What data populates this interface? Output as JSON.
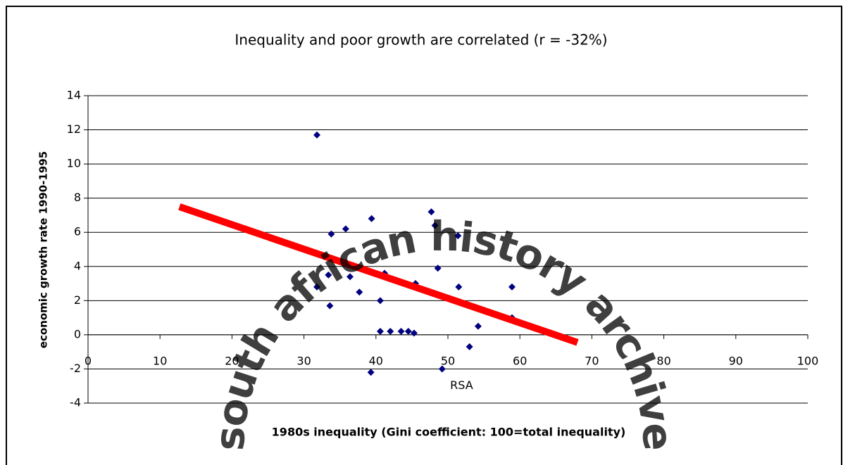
{
  "chart_data": {
    "type": "scatter",
    "title": "Inequality and poor growth are correlated (r = -32%)",
    "x_label": "1980s inequality (Gini coefficient: 100=total inequality)",
    "y_label": "economic growth rate 1990-1995",
    "series": [
      {
        "color": "#000080",
        "x": [
          31.8,
          33.8,
          35.8,
          39.4,
          47.7,
          48.2,
          51.4,
          33.4,
          48.6,
          41.2,
          36.4,
          31.8,
          37.7,
          40.6,
          51.5,
          58.9,
          33.6,
          45.5,
          40.6,
          42.0,
          43.5,
          44.5,
          45.3,
          39.3,
          49.2,
          53.0,
          54.2,
          58.9
        ],
        "values": [
          11.7,
          5.9,
          6.2,
          6.8,
          7.2,
          6.4,
          5.8,
          3.5,
          3.9,
          3.6,
          3.4,
          2.8,
          2.5,
          2.0,
          2.8,
          2.8,
          1.7,
          3.0,
          0.2,
          0.2,
          0.2,
          0.2,
          0.1,
          -2.2,
          -2.0,
          -0.7,
          0.5,
          1.0
        ]
      }
    ],
    "trendline": {
      "x": [
        12.7,
        68
      ],
      "values": [
        7.5,
        -0.45
      ],
      "color": "#ff0000"
    },
    "annotations": [
      {
        "text": "RSA",
        "x": 51.9,
        "y": -3.0
      }
    ],
    "watermark": "south african history archive",
    "xlim": [
      0,
      100
    ],
    "xticks": [
      0,
      10,
      20,
      30,
      40,
      50,
      60,
      70,
      80,
      90,
      100
    ],
    "ylim": [
      -4,
      14
    ],
    "yticks": [
      -4,
      -2,
      0,
      2,
      4,
      6,
      8,
      10,
      12,
      14
    ],
    "grid": true
  }
}
